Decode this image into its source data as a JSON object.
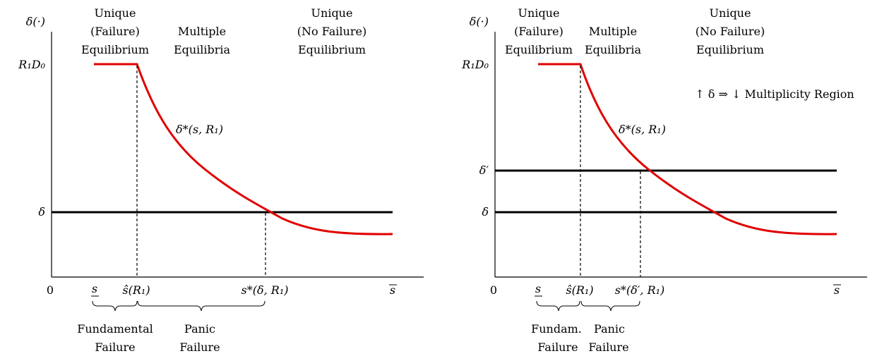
{
  "panels": [
    {
      "y_axis_label": "δ(·)",
      "y_level_label": "R₁D₀",
      "delta_label": "δ",
      "origin_label": "0",
      "s_low": "s",
      "s_high": "s",
      "s_hat": "ŝ(R₁)",
      "s_star": "s*(δ, R₁)",
      "curve_label": "δ*(s, R₁)",
      "region_left": [
        "Unique",
        "(Failure)",
        "Equilibrium"
      ],
      "region_mid": [
        "Multiple",
        "Equilibria"
      ],
      "region_right": [
        "Unique",
        "(No Failure)",
        "Equilibrium"
      ],
      "brace_left_label": [
        "Fundamental",
        "Failure"
      ],
      "brace_right_label": [
        "Panic",
        "Failure"
      ]
    },
    {
      "y_axis_label": "δ(·)",
      "y_level_label": "R₁D₀",
      "delta_label": "δ",
      "delta_prime_label": "δ′",
      "origin_label": "0",
      "s_low": "s",
      "s_high": "s",
      "s_hat": "ŝ(R₁)",
      "s_star": "s*(δ′, R₁)",
      "curve_label": "δ*(s, R₁)",
      "note": "↑ δ ⇒ ↓ Multiplicity Region",
      "region_left": [
        "Unique",
        "(Failure)",
        "Equilibrium"
      ],
      "region_mid": [
        "Multiple",
        "Equilibria"
      ],
      "region_right": [
        "Unique",
        "(No Failure)",
        "Equilibrium"
      ],
      "brace_left_label": [
        "Fundam.",
        "Failure"
      ],
      "brace_right_label": [
        "Panic",
        "Failure"
      ]
    }
  ]
}
